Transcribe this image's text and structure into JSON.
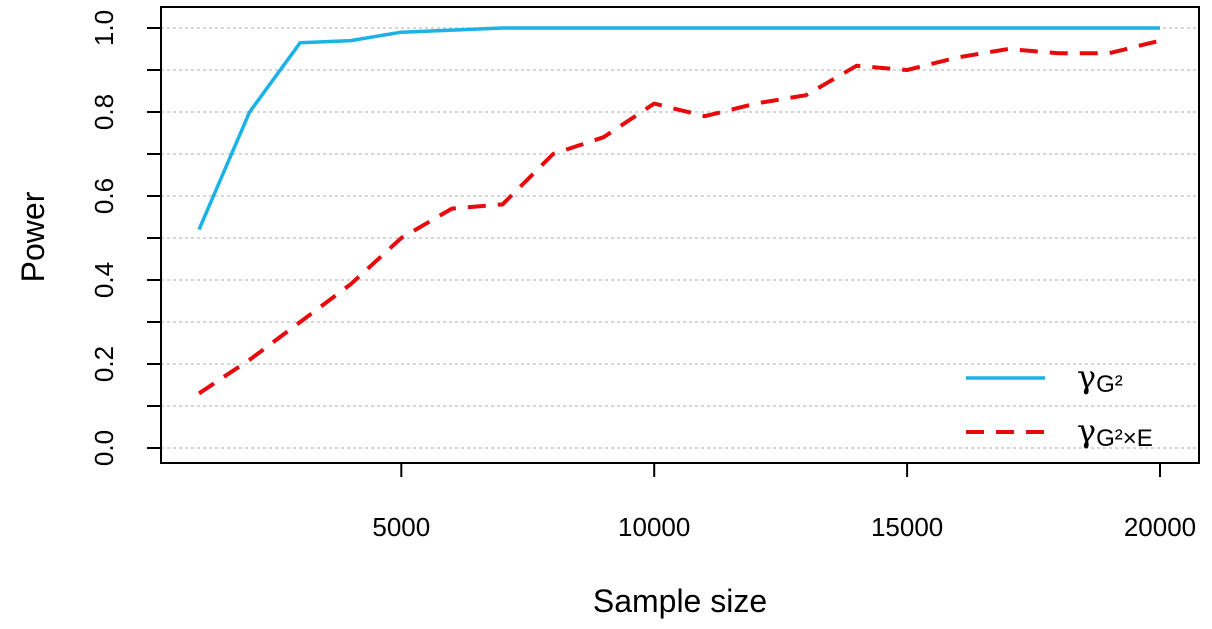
{
  "chart_data": {
    "type": "line",
    "title": "",
    "xlabel": "Sample size",
    "ylabel": "Power",
    "xlim": [
      1000,
      20000
    ],
    "ylim": [
      0,
      1
    ],
    "x_ticks": [
      5000,
      10000,
      15000,
      20000
    ],
    "x_tick_labels": [
      "5000",
      "10000",
      "15000",
      "20000"
    ],
    "y_ticks": [
      0,
      0.2,
      0.4,
      0.6,
      0.8,
      1
    ],
    "y_tick_labels": [
      "0.0",
      "0.2",
      "0.4",
      "0.6",
      "0.8",
      "1.0"
    ],
    "y_minor_ticks": [
      0.1,
      0.3,
      0.5,
      0.7,
      0.9
    ],
    "grid": true,
    "grid_axis": "y",
    "legend_position": "bottom-right",
    "series": [
      {
        "name": "γG²",
        "legend_symbol": "γ",
        "legend_subscript": "G²",
        "color": "#1BB3E6",
        "line_style": "solid",
        "x": [
          1000,
          2000,
          3000,
          4000,
          5000,
          6000,
          7000,
          8000,
          9000,
          10000,
          11000,
          12000,
          13000,
          14000,
          15000,
          16000,
          17000,
          18000,
          19000,
          20000
        ],
        "values": [
          0.52,
          0.8,
          0.965,
          0.97,
          0.99,
          0.995,
          1.0,
          1.0,
          1.0,
          1.0,
          1.0,
          1.0,
          1.0,
          1.0,
          1.0,
          1.0,
          1.0,
          1.0,
          1.0,
          1.0
        ]
      },
      {
        "name": "γG²×E",
        "legend_symbol": "γ",
        "legend_subscript": "G²×E",
        "color": "#E8090B",
        "line_style": "dashed",
        "x": [
          1000,
          2000,
          3000,
          4000,
          5000,
          6000,
          7000,
          8000,
          9000,
          10000,
          11000,
          12000,
          13000,
          14000,
          15000,
          16000,
          17000,
          18000,
          19000,
          20000
        ],
        "values": [
          0.13,
          0.21,
          0.3,
          0.39,
          0.5,
          0.57,
          0.58,
          0.7,
          0.74,
          0.82,
          0.79,
          0.82,
          0.84,
          0.91,
          0.9,
          0.93,
          0.95,
          0.94,
          0.94,
          0.97
        ]
      }
    ]
  }
}
